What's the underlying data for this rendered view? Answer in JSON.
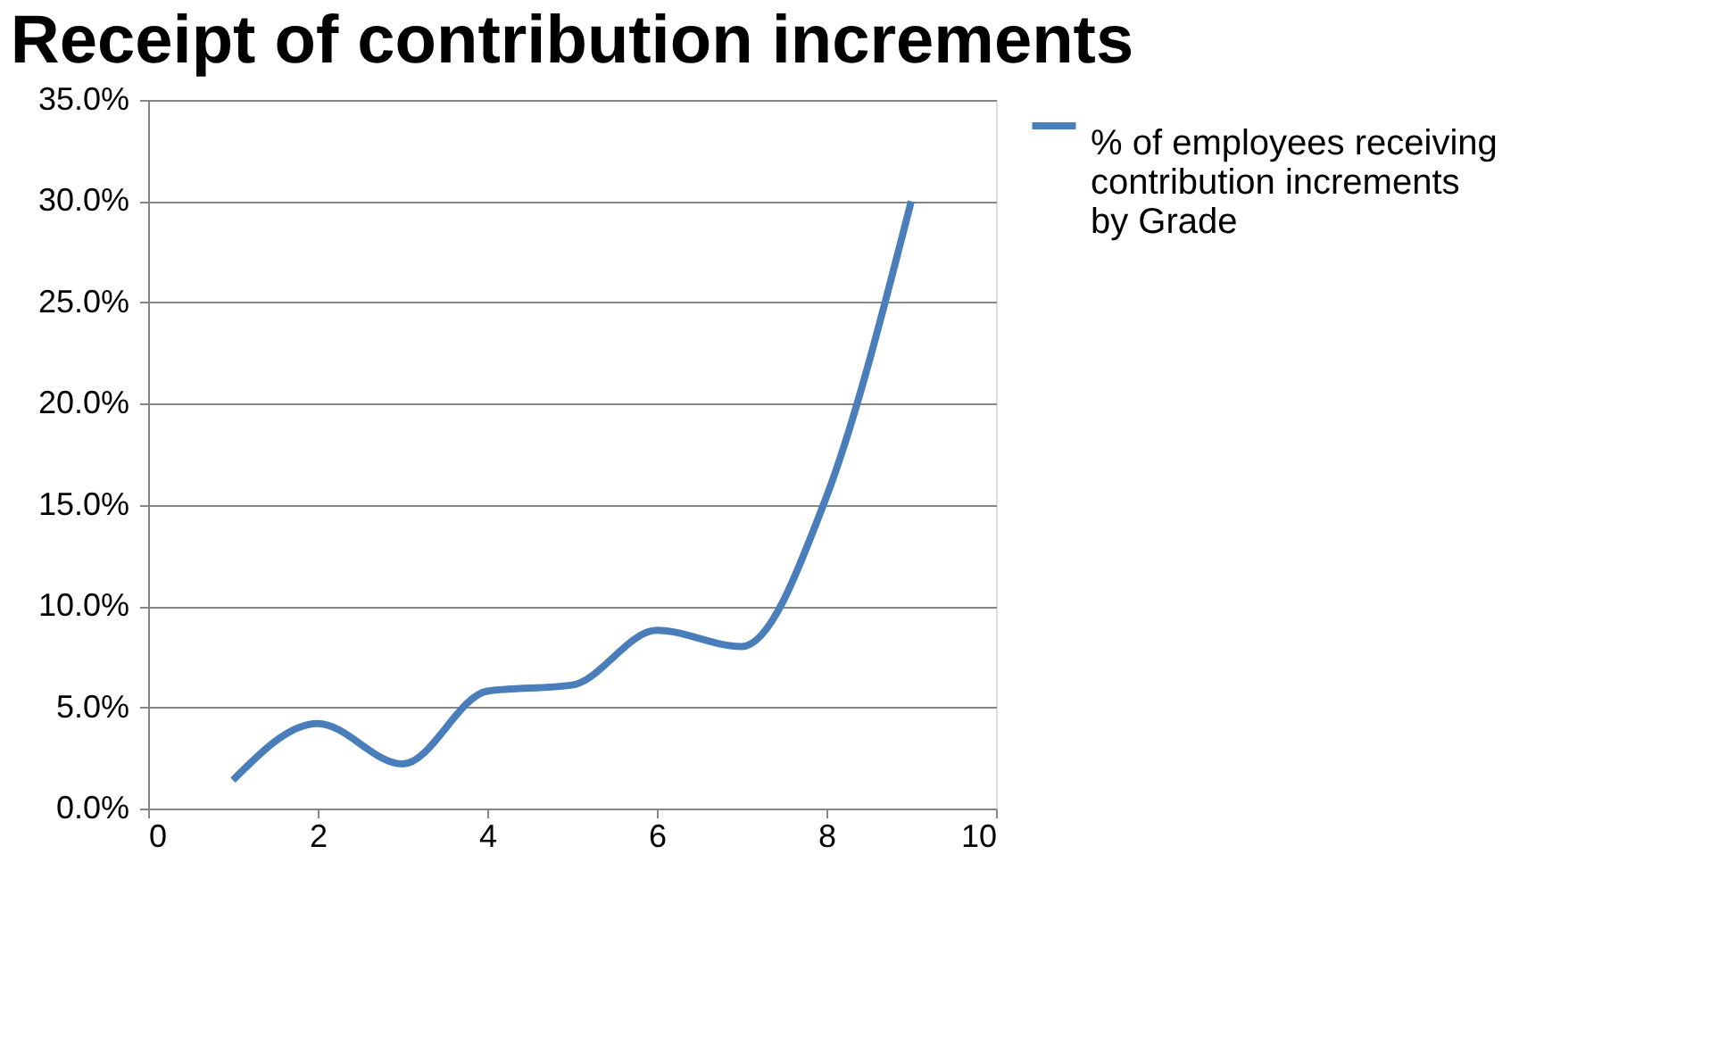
{
  "chart_data": {
    "type": "line",
    "title": "Receipt of contribution increments",
    "x": [
      1,
      2,
      3,
      4,
      5,
      6,
      7,
      8,
      9
    ],
    "series": [
      {
        "name": "% of employees receiving contribution increments by Grade",
        "color": "#4a7ebb",
        "values": [
          1.4,
          4.2,
          2.2,
          5.8,
          6.1,
          8.8,
          8.0,
          15.4,
          30.0
        ]
      }
    ],
    "xlim": [
      0,
      10
    ],
    "xticks": [
      0,
      2,
      4,
      6,
      8,
      10
    ],
    "ylim": [
      0,
      35
    ],
    "yticks": [
      {
        "value": 0,
        "label": "0.0%"
      },
      {
        "value": 5,
        "label": "5.0%"
      },
      {
        "value": 10,
        "label": "10.0%"
      },
      {
        "value": 15,
        "label": "15.0%"
      },
      {
        "value": 20,
        "label": "20.0%"
      },
      {
        "value": 25,
        "label": "25.0%"
      },
      {
        "value": 30,
        "label": "30.0%"
      },
      {
        "value": 35,
        "label": "35.0%"
      }
    ],
    "grid": "y",
    "legend": "right",
    "marker": "none",
    "line_style": "solid"
  }
}
